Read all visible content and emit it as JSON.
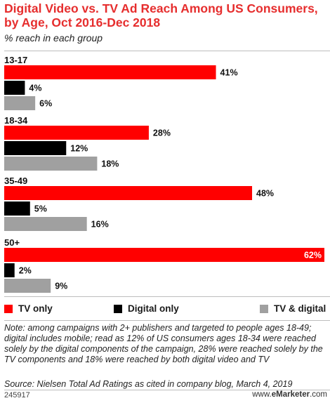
{
  "chart_data": {
    "type": "bar",
    "orientation": "horizontal",
    "title": "Digital Video vs. TV Ad Reach Among US Consumers, by Age, Oct 2016-Dec 2018",
    "subtitle": "% reach in each group",
    "categories": [
      "13-17",
      "18-34",
      "35-49",
      "50+"
    ],
    "series": [
      {
        "name": "TV only",
        "values": [
          41,
          28,
          48,
          62
        ],
        "color": "#ff0000"
      },
      {
        "name": "Digital only",
        "values": [
          4,
          12,
          5,
          2
        ],
        "color": "#000000"
      },
      {
        "name": "TV & digital",
        "values": [
          6,
          18,
          16,
          9
        ],
        "color": "#a0a0a0"
      }
    ],
    "value_suffix": "%",
    "xlim": [
      0,
      62
    ],
    "grid": false,
    "legend_position": "bottom"
  },
  "note": "Note: among campaigns with 2+ publishers and targeted to people ages 18-49; digital includes mobile; read as 12% of US consumers ages 18-34 were reached solely by the digital components of the campaign, 28% were reached solely by the TV components and 18% were reached by both digital video and TV",
  "source": "Source: Nielsen Total Ad Ratings as cited in company blog, March 4, 2019",
  "chart_id": "245917",
  "brand": {
    "prefix": "www.",
    "name": "eMarketer",
    "suffix": ".com"
  }
}
